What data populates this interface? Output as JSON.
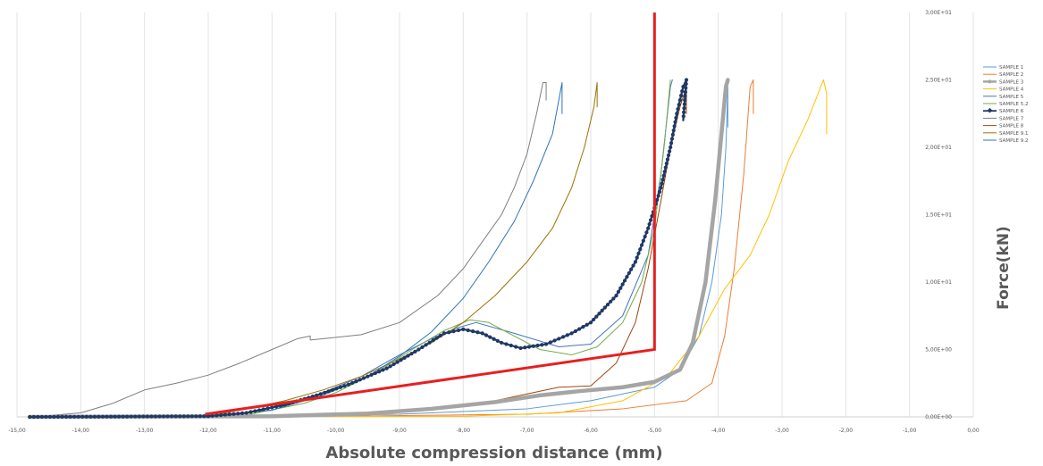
{
  "chart_data": {
    "type": "line",
    "title": "",
    "xlabel": "Absolute compression distance (mm)",
    "ylabel": "Force(kN)",
    "xlim": [
      -15,
      0
    ],
    "ylim": [
      0,
      30
    ],
    "x_ticks": [
      "-15,00",
      "-14,00",
      "-13,00",
      "-12,00",
      "-11,00",
      "-10,00",
      "-9,00",
      "-8,00",
      "-7,00",
      "-6,00",
      "-5,00",
      "-4,00",
      "-3,00",
      "-2,00",
      "-1,00",
      "0,00"
    ],
    "y_ticks": [
      "0,00E+00",
      "5,00E+00",
      "1,00E+01",
      "1,50E+01",
      "2,00E+01",
      "2,50E+01",
      "3,00E+01"
    ],
    "grid": "vertical",
    "legend_position": "right",
    "series": [
      {
        "name": "SAMPLE 1",
        "color": "#5b9bd5",
        "marker": "none",
        "points": [
          [
            -14.8,
            0
          ],
          [
            -11,
            0.05
          ],
          [
            -9,
            0.2
          ],
          [
            -7,
            0.6
          ],
          [
            -6,
            1.2
          ],
          [
            -5,
            2.2
          ],
          [
            -4.6,
            3.5
          ],
          [
            -4.3,
            6
          ],
          [
            -4.1,
            10
          ],
          [
            -3.95,
            15
          ],
          [
            -3.88,
            20
          ],
          [
            -3.85,
            24.5
          ],
          [
            -3.85,
            21.5
          ]
        ]
      },
      {
        "name": "SAMPLE 2",
        "color": "#ed7d31",
        "marker": "none",
        "points": [
          [
            -14.8,
            0
          ],
          [
            -10,
            0.05
          ],
          [
            -7,
            0.2
          ],
          [
            -5.5,
            0.6
          ],
          [
            -4.5,
            1.2
          ],
          [
            -4.1,
            2.5
          ],
          [
            -3.9,
            6
          ],
          [
            -3.75,
            11
          ],
          [
            -3.6,
            18
          ],
          [
            -3.5,
            24.5
          ],
          [
            -3.45,
            25
          ],
          [
            -3.45,
            22.5
          ]
        ]
      },
      {
        "name": "SAMPLE 3",
        "color": "#a5a5a5",
        "marker": "dot",
        "points": [
          [
            -14.8,
            0
          ],
          [
            -11,
            0.05
          ],
          [
            -9.5,
            0.25
          ],
          [
            -8.5,
            0.6
          ],
          [
            -7.5,
            1.1
          ],
          [
            -6.8,
            1.6
          ],
          [
            -6.2,
            1.9
          ],
          [
            -5.5,
            2.2
          ],
          [
            -5,
            2.6
          ],
          [
            -4.6,
            3.5
          ],
          [
            -4.4,
            5.5
          ],
          [
            -4.2,
            10
          ],
          [
            -4.05,
            16
          ],
          [
            -3.95,
            21
          ],
          [
            -3.88,
            24.5
          ],
          [
            -3.85,
            25
          ]
        ]
      },
      {
        "name": "SAMPLE 4",
        "color": "#ffc000",
        "marker": "none",
        "points": [
          [
            -14.8,
            0
          ],
          [
            -8,
            0.05
          ],
          [
            -6.5,
            0.3
          ],
          [
            -5.5,
            1.2
          ],
          [
            -4.8,
            3
          ],
          [
            -4.3,
            6
          ],
          [
            -3.9,
            9.5
          ],
          [
            -3.5,
            12
          ],
          [
            -3.2,
            15
          ],
          [
            -2.9,
            19
          ],
          [
            -2.6,
            22
          ],
          [
            -2.35,
            25
          ],
          [
            -2.3,
            24
          ],
          [
            -2.3,
            21
          ]
        ]
      },
      {
        "name": "SAMPLE 5",
        "color": "#4472c4",
        "marker": "none",
        "points": [
          [
            -14.8,
            0
          ],
          [
            -12,
            0.05
          ],
          [
            -11,
            0.5
          ],
          [
            -10.3,
            1.6
          ],
          [
            -9.6,
            3
          ],
          [
            -9,
            4.6
          ],
          [
            -8.5,
            5.8
          ],
          [
            -8.1,
            6.6
          ],
          [
            -7.8,
            7
          ],
          [
            -7.2,
            6.2
          ],
          [
            -6.5,
            5.2
          ],
          [
            -6,
            5.4
          ],
          [
            -5.5,
            7.5
          ],
          [
            -5.1,
            12
          ],
          [
            -4.9,
            18
          ],
          [
            -4.75,
            24.5
          ],
          [
            -4.72,
            25
          ]
        ]
      },
      {
        "name": "SAMPLE 5.2",
        "color": "#70ad47",
        "marker": "none",
        "points": [
          [
            -14.8,
            0
          ],
          [
            -11.5,
            0.05
          ],
          [
            -10.5,
            1
          ],
          [
            -10,
            1.8
          ],
          [
            -9.4,
            3.2
          ],
          [
            -8.8,
            5
          ],
          [
            -8.3,
            6.4
          ],
          [
            -7.9,
            7.2
          ],
          [
            -7.6,
            7
          ],
          [
            -7.2,
            6
          ],
          [
            -6.8,
            5
          ],
          [
            -6.3,
            4.6
          ],
          [
            -5.9,
            5.2
          ],
          [
            -5.5,
            7
          ],
          [
            -5.2,
            10
          ],
          [
            -5,
            14
          ],
          [
            -4.85,
            20
          ],
          [
            -4.75,
            25
          ]
        ]
      },
      {
        "name": "SAMPLE 6",
        "color": "#203864",
        "marker": "diamond",
        "points": [
          [
            -14.8,
            0
          ],
          [
            -12,
            0.05
          ],
          [
            -11.4,
            0.3
          ],
          [
            -10.8,
            0.9
          ],
          [
            -10.3,
            1.6
          ],
          [
            -9.8,
            2.4
          ],
          [
            -9.2,
            3.6
          ],
          [
            -8.7,
            5
          ],
          [
            -8.3,
            6.2
          ],
          [
            -8,
            6.5
          ],
          [
            -7.7,
            6.2
          ],
          [
            -7.4,
            5.5
          ],
          [
            -7.1,
            5.1
          ],
          [
            -6.7,
            5.4
          ],
          [
            -6.3,
            6.2
          ],
          [
            -6,
            7
          ],
          [
            -5.6,
            9
          ],
          [
            -5.3,
            11.5
          ],
          [
            -5.1,
            14
          ],
          [
            -4.9,
            17
          ],
          [
            -4.75,
            20
          ],
          [
            -4.65,
            22.5
          ],
          [
            -4.55,
            24.5
          ],
          [
            -4.5,
            25
          ],
          [
            -4.55,
            22
          ]
        ]
      },
      {
        "name": "SAMPLE 7",
        "color": "#7f7f7f",
        "marker": "none",
        "points": [
          [
            -14.8,
            0
          ],
          [
            -14.5,
            0.1
          ],
          [
            -14,
            0.3
          ],
          [
            -13.5,
            1
          ],
          [
            -13,
            2
          ],
          [
            -12.5,
            2.5
          ],
          [
            -12,
            3.1
          ],
          [
            -11.5,
            4
          ],
          [
            -11,
            5
          ],
          [
            -10.6,
            5.8
          ],
          [
            -10.4,
            6
          ],
          [
            -10.4,
            5.7
          ],
          [
            -9.6,
            6.1
          ],
          [
            -9,
            7
          ],
          [
            -8.4,
            9
          ],
          [
            -8,
            11
          ],
          [
            -7.7,
            13
          ],
          [
            -7.4,
            15
          ],
          [
            -7.2,
            17
          ],
          [
            -7,
            19.5
          ],
          [
            -6.85,
            22.5
          ],
          [
            -6.75,
            24.8
          ],
          [
            -6.7,
            24.8
          ],
          [
            -6.7,
            23.5
          ]
        ]
      },
      {
        "name": "SAMPLE 8",
        "color": "#9e480e",
        "marker": "none",
        "points": [
          [
            -14.8,
            0
          ],
          [
            -11,
            0.05
          ],
          [
            -9,
            0.4
          ],
          [
            -7.5,
            1.2
          ],
          [
            -6.5,
            2.2
          ],
          [
            -6,
            2.3
          ],
          [
            -5.6,
            4
          ],
          [
            -5.3,
            7
          ],
          [
            -5.1,
            11
          ],
          [
            -4.9,
            16
          ],
          [
            -4.75,
            20
          ],
          [
            -4.6,
            23
          ],
          [
            -4.5,
            24.5
          ],
          [
            -4.5,
            22.5
          ]
        ]
      },
      {
        "name": "SAMPLE 9.1",
        "color": "#997300",
        "marker": "none",
        "points": [
          [
            -14.8,
            0
          ],
          [
            -12,
            0.05
          ],
          [
            -11.4,
            0.6
          ],
          [
            -10.8,
            1.2
          ],
          [
            -10.2,
            2
          ],
          [
            -9.6,
            3
          ],
          [
            -9,
            4.3
          ],
          [
            -8.5,
            5.5
          ],
          [
            -8,
            7
          ],
          [
            -7.5,
            9
          ],
          [
            -7,
            11.5
          ],
          [
            -6.6,
            14
          ],
          [
            -6.3,
            17
          ],
          [
            -6.1,
            20
          ],
          [
            -5.95,
            23
          ],
          [
            -5.9,
            24.8
          ],
          [
            -5.9,
            23
          ]
        ]
      },
      {
        "name": "SAMPLE 9.2",
        "color": "#2e75b6",
        "marker": "none",
        "points": [
          [
            -14.8,
            0
          ],
          [
            -12,
            0.05
          ],
          [
            -11,
            0.5
          ],
          [
            -10.2,
            1.6
          ],
          [
            -9.5,
            3
          ],
          [
            -9,
            4.5
          ],
          [
            -8.5,
            6.3
          ],
          [
            -8,
            8.8
          ],
          [
            -7.6,
            11.5
          ],
          [
            -7.2,
            14.5
          ],
          [
            -6.9,
            17.5
          ],
          [
            -6.6,
            21
          ],
          [
            -6.45,
            24.8
          ],
          [
            -6.45,
            22.5
          ]
        ]
      }
    ],
    "annotations": [
      {
        "type": "line",
        "color": "#e62020",
        "points": [
          [
            -12.05,
            0.2
          ],
          [
            -5,
            5
          ],
          [
            -5,
            30
          ]
        ]
      }
    ]
  }
}
